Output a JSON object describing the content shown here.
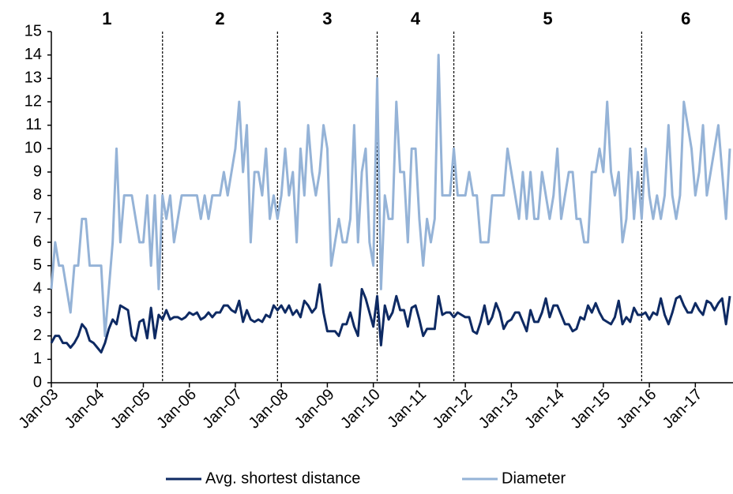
{
  "chart_data": {
    "type": "line",
    "categories": [
      "Jan-03",
      null,
      null,
      null,
      null,
      null,
      null,
      null,
      null,
      null,
      null,
      null,
      "Jan-04",
      null,
      null,
      null,
      null,
      null,
      null,
      null,
      null,
      null,
      null,
      null,
      "Jan-05",
      null,
      null,
      null,
      null,
      null,
      null,
      null,
      null,
      null,
      null,
      null,
      "Jan-06",
      null,
      null,
      null,
      null,
      null,
      null,
      null,
      null,
      null,
      null,
      null,
      "Jan-07",
      null,
      null,
      null,
      null,
      null,
      null,
      null,
      null,
      null,
      null,
      null,
      "Jan-08",
      null,
      null,
      null,
      null,
      null,
      null,
      null,
      null,
      null,
      null,
      null,
      "Jan-09",
      null,
      null,
      null,
      null,
      null,
      null,
      null,
      null,
      null,
      null,
      null,
      "Jan-10",
      null,
      null,
      null,
      null,
      null,
      null,
      null,
      null,
      null,
      null,
      null,
      "Jan-11",
      null,
      null,
      null,
      null,
      null,
      null,
      null,
      null,
      null,
      null,
      null,
      "Jan-12",
      null,
      null,
      null,
      null,
      null,
      null,
      null,
      null,
      null,
      null,
      null,
      "Jan-13",
      null,
      null,
      null,
      null,
      null,
      null,
      null,
      null,
      null,
      null,
      null,
      "Jan-14",
      null,
      null,
      null,
      null,
      null,
      null,
      null,
      null,
      null,
      null,
      null,
      "Jan-15",
      null,
      null,
      null,
      null,
      null,
      null,
      null,
      null,
      null,
      null,
      null,
      "Jan-16",
      null,
      null,
      null,
      null,
      null,
      null,
      null,
      null,
      null,
      null,
      null,
      "Jan-17",
      null,
      null,
      null,
      null,
      null,
      null,
      null,
      null,
      null
    ],
    "series": [
      {
        "name": "Avg. shortest distance",
        "color": "#0e2a63",
        "values": [
          1.7,
          2,
          2,
          1.7,
          1.7,
          1.5,
          1.7,
          2,
          2.5,
          2.3,
          1.8,
          1.7,
          1.5,
          1.3,
          1.7,
          2.3,
          2.7,
          2.5,
          3.3,
          3.2,
          3.1,
          2,
          1.8,
          2.6,
          2.7,
          1.9,
          3.2,
          1.9,
          2.9,
          2.7,
          3.1,
          2.7,
          2.8,
          2.8,
          2.7,
          2.8,
          3,
          2.9,
          3,
          2.7,
          2.8,
          3,
          2.8,
          3,
          3,
          3.3,
          3.3,
          3.1,
          3,
          3.5,
          2.6,
          3.1,
          2.7,
          2.6,
          2.7,
          2.6,
          2.9,
          2.8,
          3.3,
          3.1,
          3.3,
          3,
          3.3,
          2.9,
          3.1,
          2.8,
          3.5,
          3.3,
          3,
          3.2,
          4.2,
          3,
          2.2,
          2.2,
          2.2,
          2,
          2.5,
          2.5,
          3,
          2.4,
          2,
          4,
          3.6,
          3,
          2.4,
          3.7,
          1.6,
          3.3,
          2.7,
          3,
          3.7,
          3.1,
          3.1,
          2.4,
          3.2,
          3.3,
          2.7,
          2,
          2.3,
          2.3,
          2.3,
          3.7,
          2.9,
          3,
          3,
          2.8,
          3,
          2.9,
          2.8,
          2.8,
          2.2,
          2.1,
          2.6,
          3.3,
          2.5,
          2.8,
          3.4,
          3,
          2.3,
          2.6,
          2.7,
          3,
          3,
          2.6,
          2.2,
          3.1,
          2.6,
          2.6,
          3,
          3.6,
          2.8,
          3.3,
          3.3,
          2.9,
          2.5,
          2.5,
          2.2,
          2.3,
          2.8,
          2.7,
          3.3,
          3,
          3.4,
          3,
          2.7,
          2.6,
          2.5,
          2.8,
          3.5,
          2.5,
          2.8,
          2.6,
          3.2,
          2.9,
          2.9,
          3,
          2.7,
          3,
          2.9,
          3.6,
          2.9,
          2.5,
          3,
          3.6,
          3.7,
          3.3,
          3,
          3,
          3.4,
          3.1,
          2.9,
          3.5,
          3.4,
          3.1,
          3.4,
          3.6,
          2.5,
          3.7
        ]
      },
      {
        "name": "Diameter",
        "color": "#95b3d7",
        "values": [
          4,
          6,
          5,
          5,
          4,
          3,
          5,
          5,
          7,
          7,
          5,
          5,
          5,
          5,
          2,
          4,
          6,
          10,
          6,
          8,
          8,
          8,
          7,
          6,
          6,
          8,
          5,
          8,
          4,
          8,
          7,
          8,
          6,
          7,
          8,
          8,
          8,
          8,
          8,
          7,
          8,
          7,
          8,
          8,
          8,
          9,
          8,
          9,
          10,
          12,
          9,
          11,
          6,
          9,
          9,
          8,
          10,
          7,
          8,
          7,
          8,
          10,
          8,
          9,
          6,
          10,
          8,
          11,
          9,
          8,
          9,
          11,
          10,
          5,
          6,
          7,
          6,
          6,
          7,
          11,
          6,
          9,
          10,
          6,
          5,
          13,
          4,
          8,
          7,
          7,
          12,
          9,
          9,
          6,
          10,
          10,
          7,
          5,
          7,
          6,
          7,
          14,
          8,
          8,
          8,
          10,
          8,
          8,
          8,
          9,
          8,
          8,
          6,
          6,
          6,
          8,
          8,
          8,
          8,
          10,
          9,
          8,
          7,
          9,
          7,
          9,
          7,
          7,
          9,
          8,
          7,
          8,
          10,
          7,
          8,
          9,
          9,
          7,
          7,
          6,
          6,
          9,
          9,
          10,
          9,
          12,
          9,
          8,
          9,
          6,
          7,
          10,
          7,
          9,
          7,
          10,
          8,
          7,
          8,
          7,
          8,
          11,
          8,
          7,
          8,
          12,
          11,
          10,
          8,
          9,
          11,
          8,
          9,
          10,
          11,
          9,
          7,
          10
        ]
      }
    ],
    "ylim": [
      0,
      15
    ],
    "yticks": [
      0,
      1,
      2,
      3,
      4,
      5,
      6,
      7,
      8,
      9,
      10,
      11,
      12,
      13,
      14,
      15
    ],
    "dividers": [
      29,
      59,
      85,
      105,
      154
    ],
    "periods": [
      "1",
      "2",
      "3",
      "4",
      "5",
      "6"
    ],
    "legend": "bottom"
  }
}
